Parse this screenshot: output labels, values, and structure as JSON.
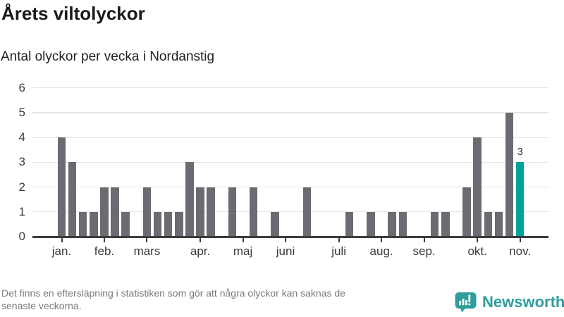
{
  "title": "Årets viltolyckor",
  "subtitle": "Antal olyckor per vecka i Nordanstig",
  "footer": {
    "note_line1": "Det finns en eftersläpning i statistiken som gör att några olyckor kan saknas de",
    "note_line2": "senaste veckorna.",
    "brand": "Newsworthy"
  },
  "colors": {
    "bar": "#6c6b71",
    "highlight": "#00a39c",
    "grid": "#e5e5e5",
    "axis": "#3d3d3d",
    "tick_label": "#3a3a3a",
    "annotation": "#333333",
    "brand_teal": "#2f9e9b"
  },
  "chart_data": {
    "type": "bar",
    "title": "Årets viltolyckor",
    "subtitle": "Antal olyckor per vecka i Nordanstig",
    "x_unit": "vecka",
    "num_weeks": 44,
    "values": [
      4,
      3,
      1,
      1,
      2,
      2,
      1,
      0,
      2,
      1,
      1,
      1,
      3,
      2,
      2,
      0,
      2,
      0,
      2,
      0,
      1,
      0,
      0,
      2,
      0,
      0,
      0,
      1,
      0,
      1,
      0,
      1,
      1,
      0,
      0,
      1,
      1,
      0,
      2,
      4,
      1,
      1,
      5,
      3
    ],
    "highlight": {
      "week": 44,
      "value": 3,
      "label": "3"
    },
    "month_ticks": [
      {
        "label": "jan.",
        "week": 1
      },
      {
        "label": "feb.",
        "week": 5
      },
      {
        "label": "mars",
        "week": 9
      },
      {
        "label": "apr.",
        "week": 14
      },
      {
        "label": "maj",
        "week": 18
      },
      {
        "label": "juni",
        "week": 22
      },
      {
        "label": "juli",
        "week": 27
      },
      {
        "label": "aug.",
        "week": 31
      },
      {
        "label": "sep.",
        "week": 35
      },
      {
        "label": "okt.",
        "week": 40
      },
      {
        "label": "nov.",
        "week": 44
      }
    ],
    "yticks": [
      0,
      1,
      2,
      3,
      4,
      5,
      6
    ],
    "ylim": [
      0,
      6
    ],
    "grid": "horizontal",
    "legend": "none"
  }
}
